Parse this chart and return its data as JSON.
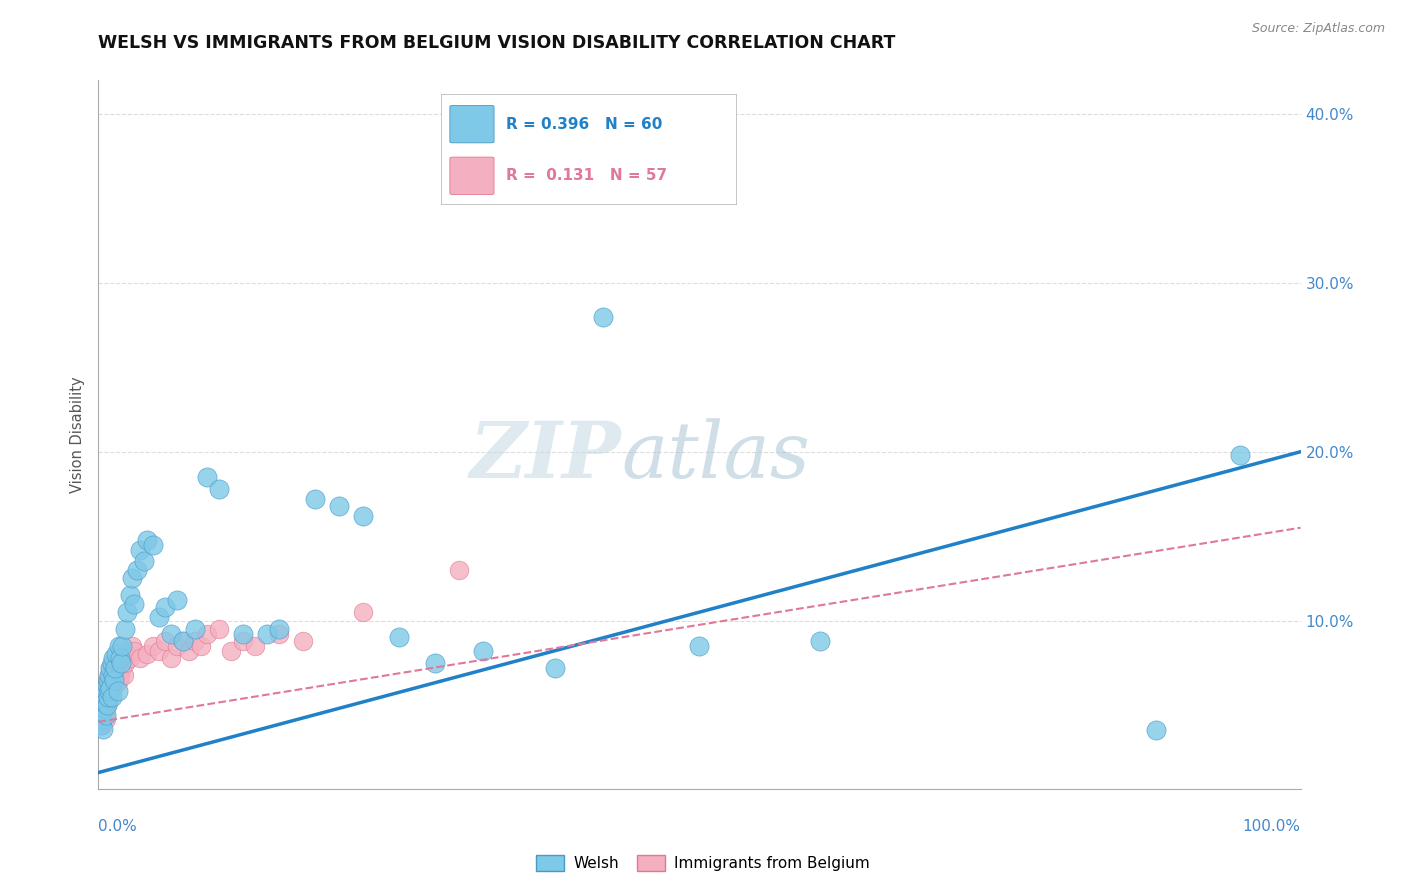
{
  "title": "WELSH VS IMMIGRANTS FROM BELGIUM VISION DISABILITY CORRELATION CHART",
  "source": "Source: ZipAtlas.com",
  "ylabel": "Vision Disability",
  "xlim": [
    0.0,
    1.0
  ],
  "ylim": [
    0.0,
    0.42
  ],
  "welsh_R": 0.396,
  "welsh_N": 60,
  "belgian_R": 0.131,
  "belgian_N": 57,
  "welsh_color": "#7ec8e8",
  "welsh_edge_color": "#4898c8",
  "belgian_color": "#f4b0c0",
  "belgian_edge_color": "#e07890",
  "welsh_line_color": "#2080c8",
  "belgian_line_color": "#e07898",
  "welsh_line_x": [
    0.0,
    1.0
  ],
  "welsh_line_y": [
    0.01,
    0.2
  ],
  "belgian_line_x": [
    0.0,
    1.0
  ],
  "belgian_line_y": [
    0.04,
    0.155
  ],
  "welsh_x": [
    0.002,
    0.003,
    0.004,
    0.005,
    0.005,
    0.006,
    0.006,
    0.007,
    0.007,
    0.008,
    0.008,
    0.009,
    0.009,
    0.01,
    0.01,
    0.011,
    0.011,
    0.012,
    0.012,
    0.013,
    0.014,
    0.015,
    0.016,
    0.017,
    0.018,
    0.019,
    0.02,
    0.022,
    0.024,
    0.026,
    0.028,
    0.03,
    0.032,
    0.035,
    0.038,
    0.04,
    0.045,
    0.05,
    0.055,
    0.06,
    0.065,
    0.07,
    0.08,
    0.09,
    0.1,
    0.12,
    0.14,
    0.15,
    0.18,
    0.2,
    0.22,
    0.25,
    0.28,
    0.32,
    0.38,
    0.42,
    0.5,
    0.6,
    0.88,
    0.95
  ],
  "welsh_y": [
    0.038,
    0.042,
    0.036,
    0.048,
    0.052,
    0.044,
    0.058,
    0.05,
    0.062,
    0.055,
    0.065,
    0.058,
    0.068,
    0.06,
    0.072,
    0.055,
    0.075,
    0.068,
    0.078,
    0.065,
    0.072,
    0.08,
    0.058,
    0.085,
    0.078,
    0.075,
    0.085,
    0.095,
    0.105,
    0.115,
    0.125,
    0.11,
    0.13,
    0.142,
    0.135,
    0.148,
    0.145,
    0.102,
    0.108,
    0.092,
    0.112,
    0.088,
    0.095,
    0.185,
    0.178,
    0.092,
    0.092,
    0.095,
    0.172,
    0.168,
    0.162,
    0.09,
    0.075,
    0.082,
    0.072,
    0.28,
    0.085,
    0.088,
    0.035,
    0.198
  ],
  "belgian_x": [
    0.001,
    0.002,
    0.003,
    0.003,
    0.004,
    0.005,
    0.005,
    0.006,
    0.006,
    0.007,
    0.007,
    0.008,
    0.008,
    0.009,
    0.009,
    0.01,
    0.01,
    0.011,
    0.011,
    0.012,
    0.012,
    0.013,
    0.013,
    0.014,
    0.015,
    0.015,
    0.016,
    0.017,
    0.018,
    0.019,
    0.02,
    0.021,
    0.022,
    0.024,
    0.026,
    0.028,
    0.03,
    0.035,
    0.04,
    0.045,
    0.05,
    0.055,
    0.06,
    0.065,
    0.07,
    0.075,
    0.08,
    0.085,
    0.09,
    0.1,
    0.11,
    0.12,
    0.13,
    0.15,
    0.17,
    0.22,
    0.3
  ],
  "belgian_y": [
    0.038,
    0.042,
    0.038,
    0.05,
    0.044,
    0.048,
    0.055,
    0.042,
    0.058,
    0.05,
    0.062,
    0.052,
    0.065,
    0.055,
    0.068,
    0.058,
    0.072,
    0.06,
    0.065,
    0.062,
    0.068,
    0.065,
    0.075,
    0.062,
    0.07,
    0.068,
    0.072,
    0.065,
    0.068,
    0.075,
    0.072,
    0.068,
    0.075,
    0.08,
    0.078,
    0.085,
    0.082,
    0.078,
    0.08,
    0.085,
    0.082,
    0.088,
    0.078,
    0.085,
    0.088,
    0.082,
    0.088,
    0.085,
    0.092,
    0.095,
    0.082,
    0.088,
    0.085,
    0.092,
    0.088,
    0.105,
    0.13
  ]
}
